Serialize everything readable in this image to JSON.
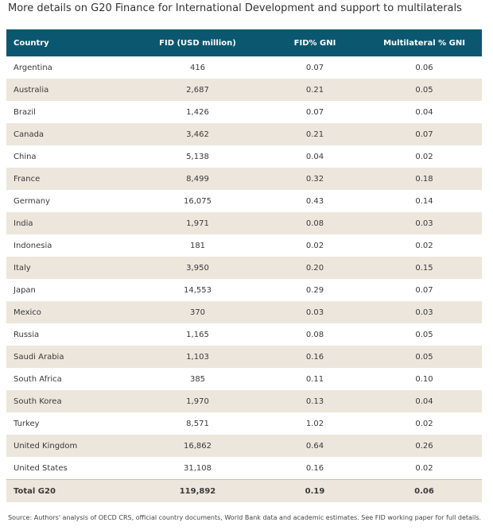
{
  "title": "More details on G20 Finance for International Development and support to multilaterals",
  "chart_data": {
    "type": "table",
    "columns": [
      "Country",
      "FID (USD million)",
      "FID% GNI",
      "Multilateral % GNI"
    ],
    "rows": [
      [
        "Argentina",
        "416",
        "0.07",
        "0.06"
      ],
      [
        "Australia",
        "2,687",
        "0.21",
        "0.05"
      ],
      [
        "Brazil",
        "1,426",
        "0.07",
        "0.04"
      ],
      [
        "Canada",
        "3,462",
        "0.21",
        "0.07"
      ],
      [
        "China",
        "5,138",
        "0.04",
        "0.02"
      ],
      [
        "France",
        "8,499",
        "0.32",
        "0.18"
      ],
      [
        "Germany",
        "16,075",
        "0.43",
        "0.14"
      ],
      [
        "India",
        "1,971",
        "0.08",
        "0.03"
      ],
      [
        "Indonesia",
        "181",
        "0.02",
        "0.02"
      ],
      [
        "Italy",
        "3,950",
        "0.20",
        "0.15"
      ],
      [
        "Japan",
        "14,553",
        "0.29",
        "0.07"
      ],
      [
        "Mexico",
        "370",
        "0.03",
        "0.03"
      ],
      [
        "Russia",
        "1,165",
        "0.08",
        "0.05"
      ],
      [
        "Saudi Arabia",
        "1,103",
        "0.16",
        "0.05"
      ],
      [
        "South Africa",
        "385",
        "0.11",
        "0.10"
      ],
      [
        "South Korea",
        "1,970",
        "0.13",
        "0.04"
      ],
      [
        "Turkey",
        "8,571",
        "1.02",
        "0.02"
      ],
      [
        "United Kingdom",
        "16,862",
        "0.64",
        "0.26"
      ],
      [
        "United States",
        "31,108",
        "0.16",
        "0.02"
      ],
      [
        "Total G20",
        "119,892",
        "0.19",
        "0.06"
      ]
    ],
    "header_color": "#0b5770",
    "stripe_color": "#ede6dc"
  },
  "source": "Source: Authors' analysis of OECD CRS, official country documents, World Bank data and academic estimates. See FID working paper for full details."
}
